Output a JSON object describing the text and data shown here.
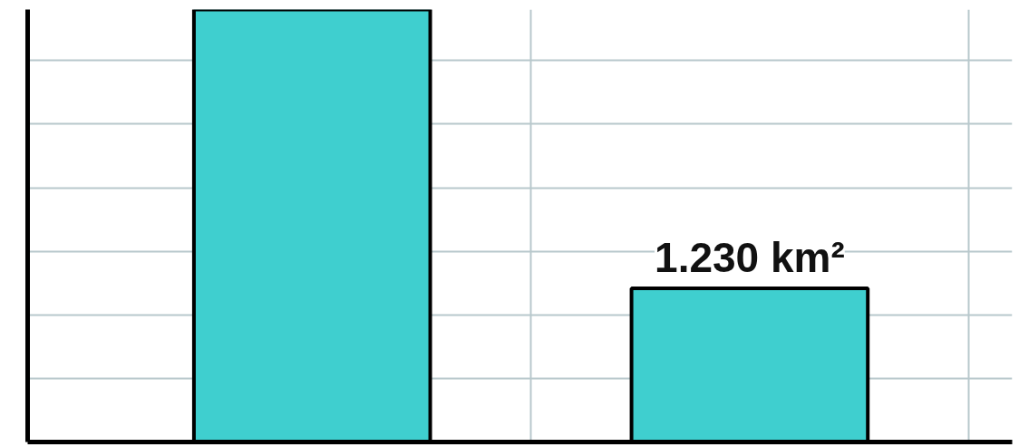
{
  "chart_data": {
    "type": "bar",
    "categories": [
      null,
      null
    ],
    "values": [
      3.46,
      1.23
    ],
    "value_labels": [
      null,
      "1.230 km²"
    ],
    "color": "#3fcfcf",
    "grid": true,
    "tick_labels": false
  }
}
